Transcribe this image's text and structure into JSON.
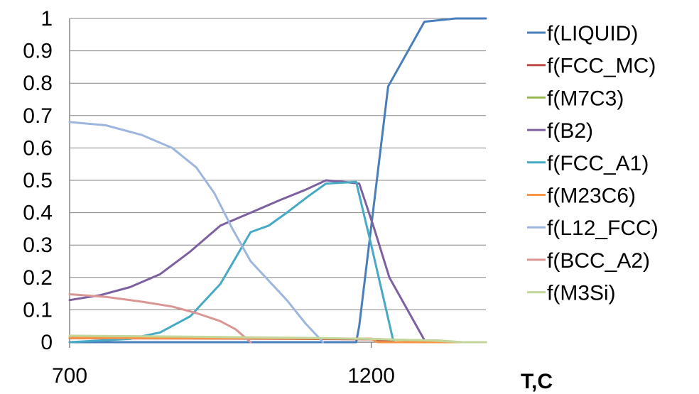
{
  "chart_data": {
    "type": "line",
    "xlabel": "T,C",
    "ylabel": "",
    "xlim": [
      700,
      1390
    ],
    "ylim": [
      0,
      1
    ],
    "x_ticks": [
      "700",
      "1200"
    ],
    "y_ticks": [
      "0",
      "0.1",
      "0.2",
      "0.3",
      "0.4",
      "0.5",
      "0.6",
      "0.7",
      "0.8",
      "0.9",
      "1"
    ],
    "grid": "horizontal",
    "legend_position": "right",
    "series": [
      {
        "name": "f(LIQUID)",
        "color": "#4a7ebb",
        "points": [
          [
            700,
            0
          ],
          [
            1100,
            0
          ],
          [
            1175,
            0
          ],
          [
            1180,
            0.05
          ],
          [
            1228,
            0.79
          ],
          [
            1288,
            0.99
          ],
          [
            1340,
            1.0
          ],
          [
            1390,
            1.0
          ]
        ]
      },
      {
        "name": "f(FCC_MC)",
        "color": "#be4b48",
        "points": [
          [
            700,
            0.012
          ],
          [
            1000,
            0.011
          ],
          [
            1200,
            0.009
          ],
          [
            1240,
            0.0
          ],
          [
            1390,
            0.0
          ]
        ]
      },
      {
        "name": "f(M7C3)",
        "color": "#98b954",
        "points": [
          [
            700,
            0.015
          ],
          [
            1000,
            0.014
          ],
          [
            1200,
            0.01
          ],
          [
            1250,
            0.007
          ],
          [
            1310,
            0.005
          ],
          [
            1350,
            0.0
          ],
          [
            1390,
            0.0
          ]
        ]
      },
      {
        "name": "f(B2)",
        "color": "#7d60a0",
        "points": [
          [
            700,
            0.13
          ],
          [
            750,
            0.145
          ],
          [
            800,
            0.17
          ],
          [
            850,
            0.21
          ],
          [
            900,
            0.28
          ],
          [
            950,
            0.36
          ],
          [
            1000,
            0.4
          ],
          [
            1050,
            0.44
          ],
          [
            1090,
            0.47
          ],
          [
            1125,
            0.5
          ],
          [
            1155,
            0.495
          ],
          [
            1180,
            0.49
          ],
          [
            1205,
            0.35
          ],
          [
            1230,
            0.2
          ],
          [
            1260,
            0.1
          ],
          [
            1290,
            0.0
          ]
        ]
      },
      {
        "name": "f(FCC_A1)",
        "color": "#46aac5",
        "points": [
          [
            700,
            0
          ],
          [
            800,
            0.01
          ],
          [
            850,
            0.03
          ],
          [
            900,
            0.08
          ],
          [
            950,
            0.18
          ],
          [
            1000,
            0.34
          ],
          [
            1030,
            0.36
          ],
          [
            1060,
            0.4
          ],
          [
            1095,
            0.45
          ],
          [
            1125,
            0.49
          ],
          [
            1175,
            0.495
          ],
          [
            1200,
            0.3
          ],
          [
            1237,
            0.0
          ],
          [
            1390,
            0.0
          ]
        ]
      },
      {
        "name": "f(M23C6)",
        "color": "#f79646",
        "points": [
          [
            700,
            0.013
          ],
          [
            1000,
            0.012
          ],
          [
            1200,
            0.011
          ],
          [
            1210,
            0.0
          ],
          [
            1390,
            0.0
          ]
        ]
      },
      {
        "name": "f(L12_FCC)",
        "color": "#9eb6dd",
        "points": [
          [
            700,
            0.68
          ],
          [
            760,
            0.67
          ],
          [
            820,
            0.64
          ],
          [
            870,
            0.6
          ],
          [
            910,
            0.54
          ],
          [
            940,
            0.46
          ],
          [
            970,
            0.35
          ],
          [
            1000,
            0.25
          ],
          [
            1030,
            0.19
          ],
          [
            1060,
            0.13
          ],
          [
            1090,
            0.06
          ],
          [
            1120,
            0.0
          ]
        ]
      },
      {
        "name": "f(BCC_A2)",
        "color": "#d99694",
        "points": [
          [
            700,
            0.148
          ],
          [
            760,
            0.14
          ],
          [
            820,
            0.125
          ],
          [
            870,
            0.11
          ],
          [
            910,
            0.09
          ],
          [
            950,
            0.065
          ],
          [
            975,
            0.04
          ],
          [
            1000,
            0.0
          ]
        ]
      },
      {
        "name": "f(M3Si)",
        "color": "#c3d69b",
        "points": [
          [
            700,
            0.02
          ],
          [
            900,
            0.017
          ],
          [
            1100,
            0.013
          ],
          [
            1200,
            0.01
          ],
          [
            1300,
            0.005
          ],
          [
            1350,
            0.0
          ],
          [
            1390,
            0.0
          ]
        ]
      }
    ]
  }
}
